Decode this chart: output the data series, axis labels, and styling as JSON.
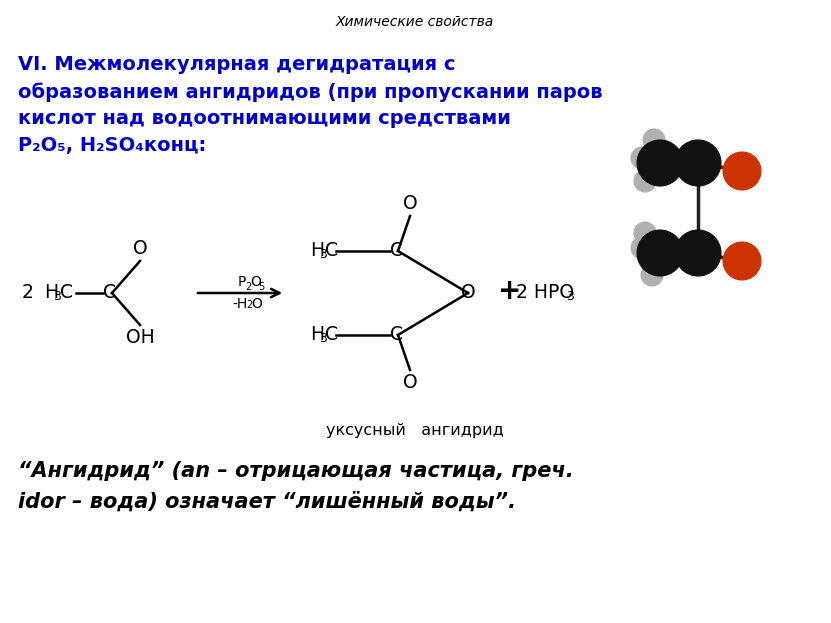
{
  "title": "Химические свойства",
  "heading_line1": "VI. Межмолекулярная дегидратация с",
  "heading_line2": "образованием ангидридов (при пропускании паров",
  "heading_line3": "кислот над водоотнимающими средствами",
  "heading_line4": "Р₂О₅, Н₂SO₄конц:",
  "heading_color": "#0000CC",
  "title_color": "#000000",
  "bg_color": "#FFFFFF",
  "bottom_label": "уксусный   ангидрид",
  "note_line1": "“Ангидрид” (an – отрицающая частица, греч.",
  "note_line2": "idor – вода) означает “лишённый воды”.",
  "molecule_ball_black": "#111111",
  "molecule_ball_red": "#CC3300",
  "molecule_ball_gray": "#B0B0B0"
}
